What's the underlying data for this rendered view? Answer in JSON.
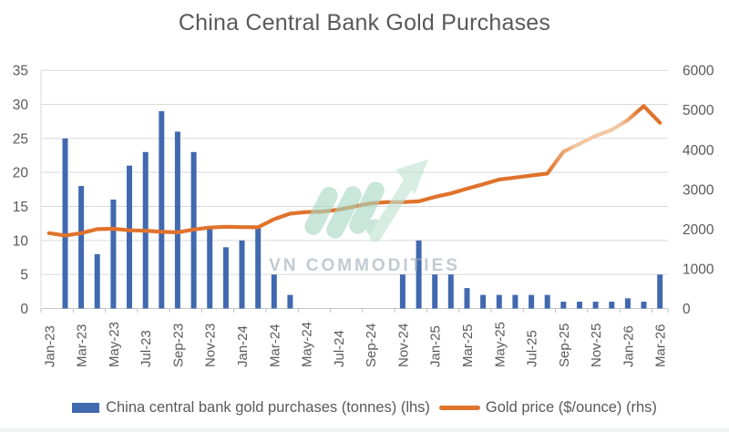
{
  "title": "China Central Bank Gold Purchases",
  "watermark": {
    "brand": "VN COMMODITIES"
  },
  "legend": {
    "bars": {
      "label": "China central bank gold purchases (tonnes) (lhs)",
      "color": "#4169B0"
    },
    "line": {
      "label": "Gold price ($/ounce) (rhs)",
      "color": "#E0732C"
    }
  },
  "chart_data": {
    "type": "bar",
    "subtype": "combo bar + line, dual axis",
    "title": "China Central Bank Gold Purchases",
    "grid": "horizontal",
    "legend_position": "bottom",
    "categories": [
      "Jan-23",
      "Feb-23",
      "Mar-23",
      "Apr-23",
      "May-23",
      "Jun-23",
      "Jul-23",
      "Aug-23",
      "Sep-23",
      "Oct-23",
      "Nov-23",
      "Dec-23",
      "Jan-24",
      "Feb-24",
      "Mar-24",
      "Apr-24",
      "May-24",
      "Jun-24",
      "Jul-24",
      "Aug-24",
      "Sep-24",
      "Oct-24",
      "Nov-24",
      "Dec-24",
      "Jan-25",
      "Feb-25",
      "Mar-25",
      "Apr-25",
      "May-25",
      "Jun-25",
      "Jul-25",
      "Aug-25",
      "Sep-25",
      "Oct-25",
      "Nov-25",
      "Dec-25",
      "Jan-26",
      "Feb-26",
      "Mar-26"
    ],
    "x_tick_labels": [
      "Jan-23",
      "Mar-23",
      "May-23",
      "Jul-23",
      "Sep-23",
      "Nov-23",
      "Jan-24",
      "Mar-24",
      "May-24",
      "Jul-24",
      "Sep-24",
      "Nov-24",
      "Jan-25",
      "Mar-25",
      "May-25",
      "Jul-25",
      "Sep-25",
      "Nov-25",
      "Jan-26",
      "Mar-26"
    ],
    "series": [
      {
        "name": "China central bank gold purchases (tonnes) (lhs)",
        "type": "bar",
        "axis": "left",
        "color": "#4169B0",
        "values": [
          null,
          25,
          18,
          8,
          16,
          21,
          23,
          29,
          26,
          23,
          12,
          9,
          10,
          12,
          5,
          2,
          null,
          null,
          null,
          null,
          null,
          null,
          5,
          10,
          5,
          5,
          3,
          2,
          2,
          2,
          2,
          2,
          1,
          1,
          1,
          1,
          1.5,
          1,
          5
        ]
      },
      {
        "name": "Gold price ($/ounce) (rhs)",
        "type": "line",
        "axis": "right",
        "color": "#E0732C",
        "faded_color": "#F2C8A4",
        "faded_from": "Sep-25",
        "faded_to": "Jan-26",
        "values": [
          1900,
          1840,
          1900,
          2000,
          2010,
          1970,
          1960,
          1930,
          1920,
          1990,
          2040,
          2060,
          2050,
          2045,
          2250,
          2390,
          2430,
          2440,
          2490,
          2570,
          2650,
          2680,
          2680,
          2700,
          2810,
          2900,
          3020,
          3130,
          3250,
          3300,
          3350,
          3400,
          3950,
          4150,
          4350,
          4500,
          4750,
          5100,
          4680
        ]
      }
    ],
    "left_axis": {
      "min": 0,
      "max": 35,
      "ticks": [
        0,
        5,
        10,
        15,
        20,
        25,
        30,
        35
      ]
    },
    "right_axis": {
      "min": 0,
      "max": 6000,
      "ticks": [
        0,
        1000,
        2000,
        3000,
        4000,
        5000,
        6000
      ]
    }
  }
}
